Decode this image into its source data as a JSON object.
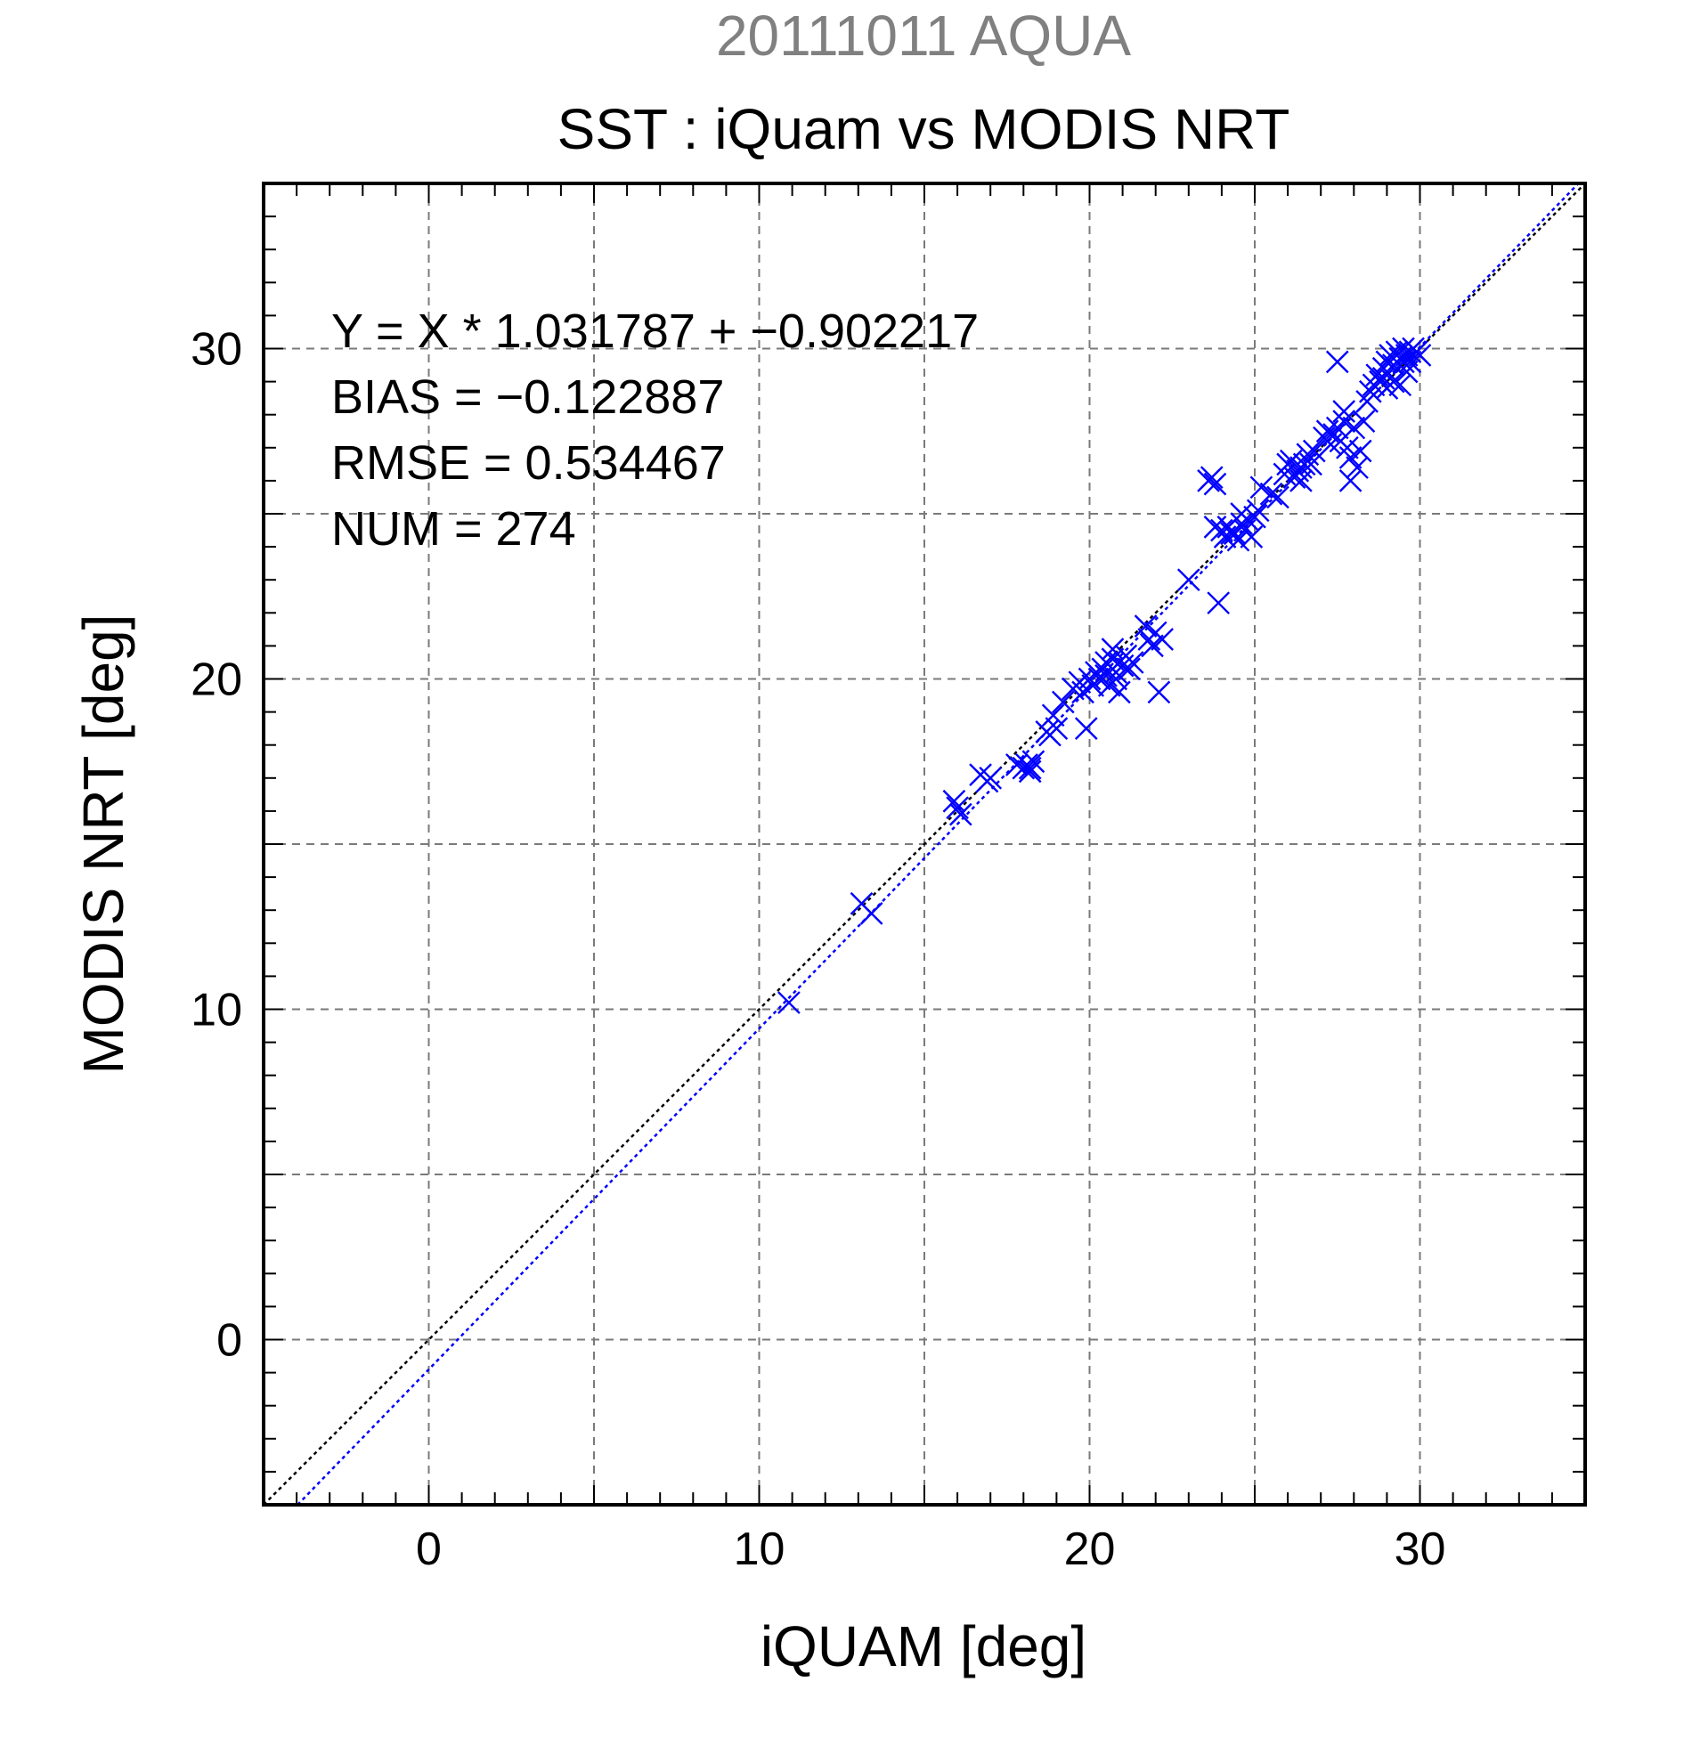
{
  "chart_data": {
    "type": "scatter",
    "supertitle": "20111011 AQUA",
    "title": "SST : iQuam vs MODIS NRT",
    "xlabel": "iQUAM [deg]",
    "ylabel": "MODIS NRT [deg]",
    "xlim": [
      -5,
      35
    ],
    "ylim": [
      -5,
      35
    ],
    "xticks": [
      0,
      10,
      20,
      30
    ],
    "yticks": [
      0,
      10,
      20,
      30
    ],
    "grid": true,
    "marker": "x",
    "colors": {
      "points": "#0000ff",
      "fit_line": "#0000ff",
      "identity_line": "#000000",
      "supertitle": "#808080"
    },
    "stats": [
      "Y = X * 1.031787 + −0.902217",
      "BIAS = −0.122887",
      "RMSE = 0.534467",
      "NUM = 274"
    ],
    "fit": {
      "slope": 1.031787,
      "intercept": -0.902217
    },
    "identity": {
      "slope": 1,
      "intercept": 0
    },
    "points": [
      [
        10.9,
        10.2
      ],
      [
        13.1,
        13.2
      ],
      [
        13.4,
        12.9
      ],
      [
        15.9,
        16.3
      ],
      [
        16.1,
        15.9
      ],
      [
        16.0,
        16.1
      ],
      [
        16.7,
        17.1
      ],
      [
        16.9,
        16.9
      ],
      [
        17.0,
        17.0
      ],
      [
        17.8,
        17.4
      ],
      [
        18.0,
        17.3
      ],
      [
        18.2,
        17.3
      ],
      [
        18.1,
        17.4
      ],
      [
        18.3,
        17.5
      ],
      [
        18.2,
        17.2
      ],
      [
        18.7,
        18.4
      ],
      [
        18.8,
        18.3
      ],
      [
        19.0,
        18.5
      ],
      [
        18.9,
        18.9
      ],
      [
        19.2,
        19.3
      ],
      [
        19.5,
        19.7
      ],
      [
        19.7,
        19.9
      ],
      [
        19.8,
        19.6
      ],
      [
        19.9,
        18.5
      ],
      [
        20.0,
        20.0
      ],
      [
        20.1,
        19.8
      ],
      [
        20.2,
        20.2
      ],
      [
        20.3,
        20.0
      ],
      [
        20.4,
        20.3
      ],
      [
        20.5,
        20.5
      ],
      [
        20.5,
        20.1
      ],
      [
        20.6,
        19.8
      ],
      [
        20.7,
        20.6
      ],
      [
        20.8,
        20.2
      ],
      [
        20.9,
        19.6
      ],
      [
        20.9,
        20.5
      ],
      [
        21.0,
        20.4
      ],
      [
        21.1,
        20.7
      ],
      [
        21.2,
        20.3
      ],
      [
        20.7,
        20.9
      ],
      [
        21.3,
        20.5
      ],
      [
        20.8,
        20.0
      ],
      [
        21.7,
        21.6
      ],
      [
        21.8,
        21.2
      ],
      [
        21.9,
        21.0
      ],
      [
        22.0,
        21.4
      ],
      [
        22.2,
        21.2
      ],
      [
        22.1,
        19.6
      ],
      [
        23.0,
        23.0
      ],
      [
        23.6,
        26.0
      ],
      [
        23.7,
        26.1
      ],
      [
        23.8,
        25.9
      ],
      [
        23.9,
        22.3
      ],
      [
        23.8,
        24.6
      ],
      [
        24.0,
        24.5
      ],
      [
        24.1,
        24.3
      ],
      [
        24.2,
        24.6
      ],
      [
        24.3,
        24.4
      ],
      [
        24.4,
        24.4
      ],
      [
        24.5,
        24.2
      ],
      [
        24.6,
        24.7
      ],
      [
        24.7,
        24.5
      ],
      [
        24.8,
        24.8
      ],
      [
        24.9,
        24.3
      ],
      [
        25.0,
        24.9
      ],
      [
        25.1,
        25.1
      ],
      [
        24.6,
        25.0
      ],
      [
        25.2,
        25.8
      ],
      [
        25.5,
        25.6
      ],
      [
        25.7,
        25.5
      ],
      [
        25.9,
        26.2
      ],
      [
        26.0,
        26.5
      ],
      [
        26.1,
        26.6
      ],
      [
        26.2,
        26.1
      ],
      [
        26.3,
        26.3
      ],
      [
        26.4,
        26.4
      ],
      [
        26.5,
        26.5
      ],
      [
        26.4,
        26.0
      ],
      [
        26.6,
        26.8
      ],
      [
        26.7,
        26.5
      ],
      [
        26.8,
        26.9
      ],
      [
        27.1,
        27.3
      ],
      [
        27.2,
        27.5
      ],
      [
        27.3,
        27.1
      ],
      [
        27.4,
        27.4
      ],
      [
        27.5,
        27.6
      ],
      [
        27.6,
        27.2
      ],
      [
        27.7,
        27.8
      ],
      [
        27.8,
        27.0
      ],
      [
        27.9,
        26.7
      ],
      [
        27.5,
        29.6
      ],
      [
        27.7,
        28.1
      ],
      [
        27.9,
        26.0
      ],
      [
        28.0,
        27.6
      ],
      [
        28.1,
        26.4
      ],
      [
        28.2,
        26.9
      ],
      [
        28.3,
        27.8
      ],
      [
        28.4,
        28.4
      ],
      [
        28.5,
        28.7
      ],
      [
        28.6,
        28.9
      ],
      [
        28.7,
        29.2
      ],
      [
        28.8,
        29.0
      ],
      [
        28.9,
        29.4
      ],
      [
        29.0,
        29.6
      ],
      [
        29.1,
        29.8
      ],
      [
        29.2,
        29.5
      ],
      [
        29.3,
        29.9
      ],
      [
        29.4,
        29.7
      ],
      [
        29.5,
        30.0
      ],
      [
        29.6,
        29.8
      ],
      [
        29.7,
        29.9
      ],
      [
        29.8,
        30.0
      ],
      [
        29.9,
        29.9
      ],
      [
        30.0,
        29.8
      ],
      [
        29.2,
        29.0
      ],
      [
        29.4,
        28.9
      ],
      [
        29.6,
        29.3
      ],
      [
        29.0,
        28.8
      ],
      [
        28.9,
        29.1
      ],
      [
        29.5,
        29.6
      ],
      [
        29.7,
        29.6
      ]
    ]
  }
}
